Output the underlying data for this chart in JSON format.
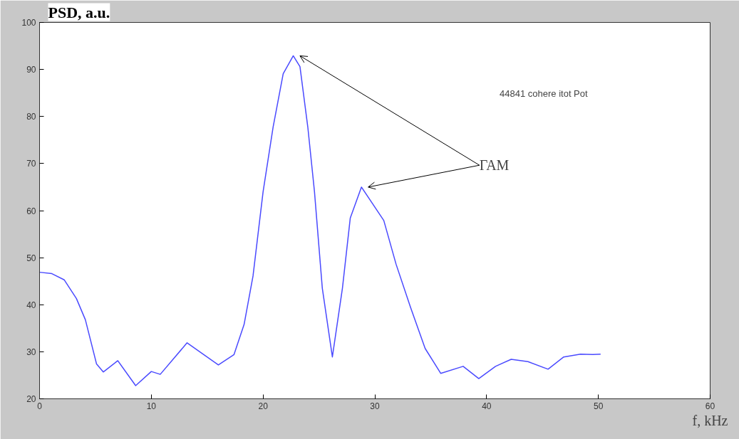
{
  "chart_data": {
    "type": "line",
    "ylabel": "PSD, a.u.",
    "xlabel": "f, kHz",
    "x": [
      0,
      1.1,
      2.2,
      3.3,
      4.1,
      5.1,
      5.7,
      7.0,
      8.6,
      10.0,
      10.8,
      13.2,
      16.0,
      17.4,
      18.3,
      19.1,
      20.0,
      20.9,
      21.8,
      22.7,
      23.3,
      24.0,
      24.6,
      25.3,
      26.2,
      27.1,
      27.8,
      28.8,
      30.8,
      31.9,
      33.2,
      34.5,
      35.9,
      37.9,
      39.3,
      40.8,
      42.2,
      43.7,
      45.5,
      46.9,
      48.4,
      49.5,
      50.2
    ],
    "series": [
      {
        "color": "#4a4aff",
        "values": [
          46.9,
          46.6,
          45.3,
          41.3,
          36.8,
          27.4,
          25.7,
          28.1,
          22.8,
          25.8,
          25.2,
          31.9,
          27.2,
          29.4,
          35.8,
          46.1,
          64.0,
          77.8,
          89.1,
          92.9,
          90.6,
          77.8,
          64.0,
          43.5,
          28.9,
          43.5,
          58.4,
          65.0,
          57.9,
          48.6,
          39.4,
          30.7,
          25.4,
          26.9,
          24.3,
          26.9,
          28.4,
          27.9,
          26.3,
          28.9,
          29.5,
          29.4,
          29.5
        ]
      }
    ],
    "xlim": [
      0,
      60
    ],
    "xticks": [
      0,
      10,
      20,
      30,
      40,
      50,
      60
    ],
    "ylim": [
      20,
      100
    ],
    "yticks": [
      20,
      30,
      40,
      50,
      60,
      70,
      80,
      90,
      100
    ],
    "grid": false,
    "marker": "none",
    "line_style": "solid",
    "annotations": [
      "44841 cohere itot Pot",
      "ГАМ"
    ]
  }
}
